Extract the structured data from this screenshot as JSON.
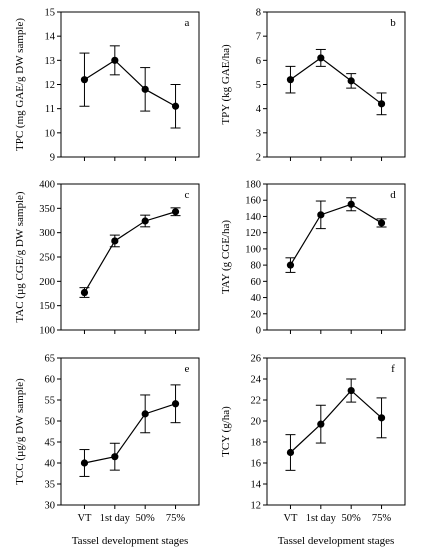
{
  "xlabel": "Tassel development stages",
  "categories": [
    "VT",
    "1st day",
    "50%",
    "75%"
  ],
  "chart_data": [
    {
      "type": "line",
      "panel": "a",
      "ylabel": "TPC (mg GAE/g DW sample)",
      "ylim": [
        9,
        15
      ],
      "yticks": [
        9,
        10,
        11,
        12,
        13,
        14,
        15
      ],
      "categories": [
        "VT",
        "1st day",
        "50%",
        "75%"
      ],
      "values": [
        12.2,
        13.0,
        11.8,
        11.1
      ],
      "errors": [
        1.1,
        0.6,
        0.9,
        0.9
      ]
    },
    {
      "type": "line",
      "panel": "b",
      "ylabel": "TPY (kg GAE/ha)",
      "ylim": [
        2,
        8
      ],
      "yticks": [
        2,
        3,
        4,
        5,
        6,
        7,
        8
      ],
      "categories": [
        "VT",
        "1st day",
        "50%",
        "75%"
      ],
      "values": [
        5.2,
        6.1,
        5.15,
        4.2
      ],
      "errors": [
        0.55,
        0.35,
        0.3,
        0.45
      ]
    },
    {
      "type": "line",
      "panel": "c",
      "ylabel": "TAC (µg CGE/g DW sample)",
      "ylim": [
        100,
        400
      ],
      "yticks": [
        100,
        150,
        200,
        250,
        300,
        350,
        400
      ],
      "categories": [
        "VT",
        "1st day",
        "50%",
        "75%"
      ],
      "values": [
        177,
        283,
        324,
        343
      ],
      "errors": [
        10,
        12,
        12,
        8
      ]
    },
    {
      "type": "line",
      "panel": "d",
      "ylabel": "TAY (g CGE/ha)",
      "ylim": [
        0,
        180
      ],
      "yticks": [
        0,
        20,
        40,
        60,
        80,
        100,
        120,
        140,
        160,
        180
      ],
      "categories": [
        "VT",
        "1st day",
        "50%",
        "75%"
      ],
      "values": [
        80,
        142,
        155,
        132
      ],
      "errors": [
        9,
        17,
        8,
        5
      ]
    },
    {
      "type": "line",
      "panel": "e",
      "ylabel": "TCC (µg/g DW sample)",
      "ylim": [
        30,
        65
      ],
      "yticks": [
        30,
        35,
        40,
        45,
        50,
        55,
        60,
        65
      ],
      "categories": [
        "VT",
        "1st day",
        "50%",
        "75%"
      ],
      "values": [
        40,
        41.5,
        51.7,
        54.1
      ],
      "errors": [
        3.2,
        3.2,
        4.5,
        4.5
      ]
    },
    {
      "type": "line",
      "panel": "f",
      "ylabel": "TCY (g/ha)",
      "ylim": [
        12,
        26
      ],
      "yticks": [
        12,
        14,
        16,
        18,
        20,
        22,
        24,
        26
      ],
      "categories": [
        "VT",
        "1st day",
        "50%",
        "75%"
      ],
      "values": [
        17.0,
        19.7,
        22.9,
        20.3
      ],
      "errors": [
        1.7,
        1.8,
        1.1,
        1.9
      ]
    }
  ]
}
